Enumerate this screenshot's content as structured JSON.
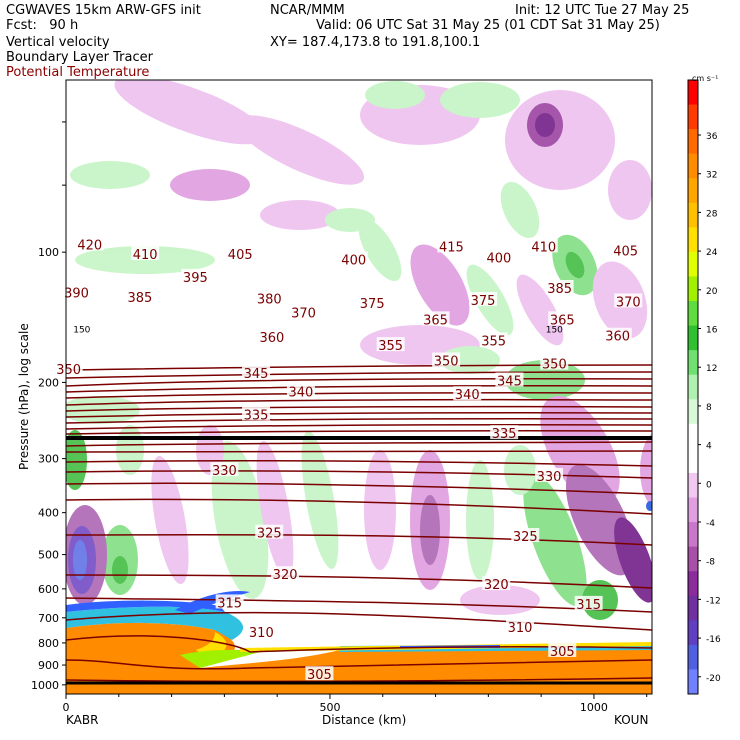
{
  "header": {
    "model": "CGWAVES 15km ARW-GFS init",
    "fcst": "Fcst:   90 h",
    "org": "NCAR/MMM",
    "init": "Init: 12 UTC Tue 27 May 25",
    "valid": "Valid: 06 UTC Sat 31 May 25 (01 CDT Sat 31 May 25)",
    "xy": "XY= 187.4,173.8 to 191.8,100.1",
    "field1": "Vertical velocity",
    "field2": "Boundary Layer Tracer",
    "field3": "Potential Temperature"
  },
  "colorbar": {
    "units": "cm s⁻¹",
    "levels": [
      "36",
      "32",
      "28",
      "24",
      "20",
      "16",
      "12",
      "8",
      "4",
      "0",
      "-4",
      "-8",
      "-12",
      "-16",
      "-20"
    ],
    "colors": [
      "#ff0000",
      "#ff3b00",
      "#ff6a00",
      "#ff8c00",
      "#ffa500",
      "#ffc000",
      "#ffe000",
      "#e0ff00",
      "#a0f000",
      "#60dc40",
      "#30c030",
      "#70e070",
      "#b0f0b0",
      "#d8f8d8",
      "#ffffff",
      "#ffffff",
      "#f0c8f0",
      "#e0a0e0",
      "#c878c8",
      "#a850a8",
      "#8c2c9c",
      "#7030a0",
      "#6040c0",
      "#5060e0",
      "#7080ff"
    ]
  },
  "chart_data": {
    "type": "heatmap",
    "title": "",
    "xlabel": "Distance (km)",
    "ylabel": "Pressure (hPa), log scale",
    "xlim": [
      0,
      1110
    ],
    "ylim": [
      1050,
      40
    ],
    "x_ticks": [
      "0",
      "500",
      "1000"
    ],
    "x_tick_values": [
      0,
      500,
      1000
    ],
    "y_ticks": [
      "100",
      "200",
      "300",
      "400",
      "500",
      "600",
      "700",
      "800",
      "900",
      "1000"
    ],
    "y_tick_values": [
      100,
      200,
      300,
      400,
      500,
      600,
      700,
      800,
      900,
      1000
    ],
    "endpoints": {
      "left": "KABR",
      "right": "KOUN"
    },
    "tropopause_marker": "150",
    "theta_contours": [
      {
        "label": "420",
        "x": 45,
        "p": 96
      },
      {
        "label": "410",
        "x": 150,
        "p": 101
      },
      {
        "label": "405",
        "x": 330,
        "p": 101
      },
      {
        "label": "400",
        "x": 545,
        "p": 104
      },
      {
        "label": "415",
        "x": 730,
        "p": 97
      },
      {
        "label": "400",
        "x": 820,
        "p": 103
      },
      {
        "label": "410",
        "x": 905,
        "p": 97
      },
      {
        "label": "405",
        "x": 1060,
        "p": 99
      },
      {
        "label": "390",
        "x": 20,
        "p": 124
      },
      {
        "label": "385",
        "x": 140,
        "p": 127
      },
      {
        "label": "395",
        "x": 245,
        "p": 114
      },
      {
        "label": "380",
        "x": 385,
        "p": 128
      },
      {
        "label": "370",
        "x": 450,
        "p": 138
      },
      {
        "label": "375",
        "x": 580,
        "p": 131
      },
      {
        "label": "365",
        "x": 700,
        "p": 143
      },
      {
        "label": "375",
        "x": 790,
        "p": 129
      },
      {
        "label": "385",
        "x": 935,
        "p": 121
      },
      {
        "label": "365",
        "x": 940,
        "p": 143
      },
      {
        "label": "370",
        "x": 1065,
        "p": 130
      },
      {
        "label": "360",
        "x": 390,
        "p": 157
      },
      {
        "label": "355",
        "x": 615,
        "p": 164
      },
      {
        "label": "355",
        "x": 810,
        "p": 160
      },
      {
        "label": "360",
        "x": 1045,
        "p": 156
      },
      {
        "label": "350",
        "x": 5,
        "p": 186
      },
      {
        "label": "350",
        "x": 720,
        "p": 178
      },
      {
        "label": "350",
        "x": 925,
        "p": 181
      },
      {
        "label": "345",
        "x": 360,
        "p": 190
      },
      {
        "label": "345",
        "x": 840,
        "p": 198
      },
      {
        "label": "340",
        "x": 445,
        "p": 210
      },
      {
        "label": "340",
        "x": 760,
        "p": 213
      },
      {
        "label": "335",
        "x": 360,
        "p": 237
      },
      {
        "label": "335",
        "x": 830,
        "p": 262
      },
      {
        "label": "330",
        "x": 300,
        "p": 319
      },
      {
        "label": "330",
        "x": 915,
        "p": 329
      },
      {
        "label": "325",
        "x": 385,
        "p": 445
      },
      {
        "label": "325",
        "x": 870,
        "p": 453
      },
      {
        "label": "320",
        "x": 415,
        "p": 555
      },
      {
        "label": "320",
        "x": 815,
        "p": 585
      },
      {
        "label": "315",
        "x": 310,
        "p": 645
      },
      {
        "label": "315",
        "x": 990,
        "p": 650
      },
      {
        "label": "310",
        "x": 370,
        "p": 755
      },
      {
        "label": "310",
        "x": 860,
        "p": 735
      },
      {
        "label": "305",
        "x": 480,
        "p": 945
      },
      {
        "label": "305",
        "x": 940,
        "p": 835
      }
    ]
  }
}
